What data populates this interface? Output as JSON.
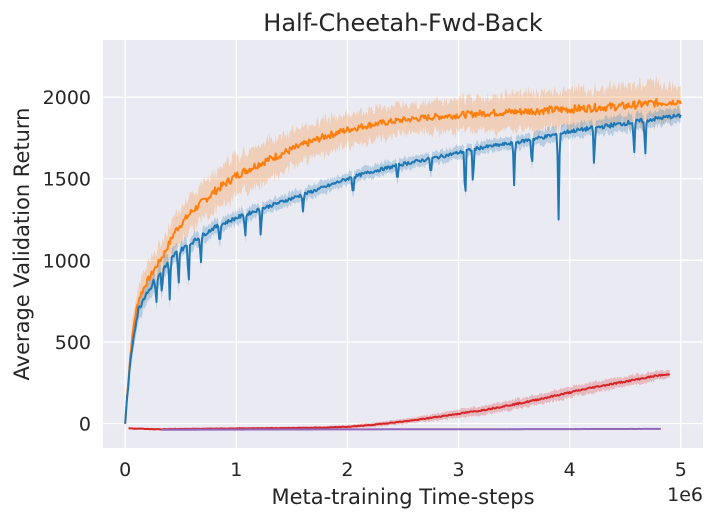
{
  "chart_data": {
    "type": "line",
    "title": "Half-Cheetah-Fwd-Back",
    "xlabel": "Meta-training Time-steps",
    "ylabel": "Average Validation Return",
    "x_offset_label": "1e6",
    "xlim": [
      -0.2,
      5.2
    ],
    "ylim": [
      -150,
      2350
    ],
    "xticks": [
      0,
      1,
      2,
      3,
      4,
      5
    ],
    "xtick_labels": [
      "0",
      "1",
      "2",
      "3",
      "4",
      "5"
    ],
    "yticks": [
      0,
      500,
      1000,
      1500,
      2000
    ],
    "ytick_labels": [
      "0",
      "500",
      "1000",
      "1500",
      "2000"
    ],
    "grid": true,
    "legend": "none",
    "series": [
      {
        "name": "orange",
        "color": "#ff7f0e",
        "x": [
          0.0,
          0.02,
          0.05,
          0.08,
          0.12,
          0.18,
          0.25,
          0.35,
          0.45,
          0.6,
          0.8,
          1.0,
          1.2,
          1.5,
          1.8,
          2.0,
          2.2,
          2.5,
          2.8,
          3.0,
          3.2,
          3.5,
          3.8,
          4.0,
          4.2,
          4.5,
          4.7,
          4.9,
          5.0
        ],
        "y": [
          0,
          200,
          450,
          620,
          760,
          850,
          930,
          1040,
          1180,
          1300,
          1420,
          1520,
          1590,
          1680,
          1760,
          1800,
          1830,
          1860,
          1880,
          1890,
          1900,
          1910,
          1920,
          1925,
          1935,
          1945,
          1960,
          1970,
          1975
        ],
        "band_width": [
          20,
          60,
          90,
          100,
          110,
          110,
          110,
          115,
          120,
          130,
          140,
          140,
          140,
          130,
          120,
          115,
          110,
          105,
          110,
          115,
          120,
          130,
          140,
          140,
          140,
          140,
          145,
          130,
          110
        ]
      },
      {
        "name": "blue",
        "color": "#1f77b4",
        "x": [
          0.0,
          0.02,
          0.05,
          0.08,
          0.12,
          0.18,
          0.25,
          0.35,
          0.45,
          0.6,
          0.8,
          1.0,
          1.2,
          1.5,
          1.8,
          2.0,
          2.2,
          2.5,
          2.8,
          3.0,
          3.2,
          3.5,
          3.8,
          4.0,
          4.2,
          4.5,
          4.7,
          4.9,
          5.0
        ],
        "y": [
          0,
          180,
          400,
          560,
          700,
          790,
          860,
          950,
          1040,
          1110,
          1200,
          1260,
          1310,
          1380,
          1450,
          1500,
          1540,
          1590,
          1630,
          1660,
          1690,
          1720,
          1760,
          1790,
          1810,
          1840,
          1860,
          1880,
          1885
        ],
        "band_width": [
          20,
          50,
          80,
          90,
          90,
          80,
          80,
          70,
          60,
          55,
          50,
          50,
          45,
          45,
          45,
          45,
          45,
          45,
          45,
          45,
          45,
          45,
          50,
          50,
          55,
          60,
          60,
          55,
          50
        ],
        "dips": [
          {
            "x": 0.22,
            "y": 820
          },
          {
            "x": 0.28,
            "y": 720
          },
          {
            "x": 0.33,
            "y": 780
          },
          {
            "x": 0.4,
            "y": 760
          },
          {
            "x": 0.48,
            "y": 830
          },
          {
            "x": 0.57,
            "y": 820
          },
          {
            "x": 0.68,
            "y": 960
          },
          {
            "x": 0.85,
            "y": 1080
          },
          {
            "x": 1.08,
            "y": 1130
          },
          {
            "x": 1.22,
            "y": 1130
          },
          {
            "x": 1.6,
            "y": 1300
          },
          {
            "x": 2.05,
            "y": 1380
          },
          {
            "x": 2.45,
            "y": 1470
          },
          {
            "x": 2.75,
            "y": 1510
          },
          {
            "x": 3.06,
            "y": 1320
          },
          {
            "x": 3.13,
            "y": 1440
          },
          {
            "x": 3.5,
            "y": 1460
          },
          {
            "x": 3.66,
            "y": 1550
          },
          {
            "x": 3.9,
            "y": 1250
          },
          {
            "x": 4.22,
            "y": 1560
          },
          {
            "x": 4.58,
            "y": 1630
          },
          {
            "x": 4.68,
            "y": 1620
          }
        ]
      },
      {
        "name": "red",
        "color": "#d62728",
        "x": [
          0.03,
          0.3,
          0.6,
          1.0,
          1.4,
          1.8,
          2.0,
          2.2,
          2.4,
          2.6,
          2.8,
          3.0,
          3.2,
          3.4,
          3.6,
          3.8,
          4.0,
          4.2,
          4.4,
          4.6,
          4.8,
          4.9
        ],
        "y": [
          -30,
          -35,
          -33,
          -30,
          -28,
          -25,
          -20,
          -10,
          5,
          20,
          40,
          60,
          80,
          105,
          130,
          160,
          190,
          220,
          245,
          270,
          295,
          300
        ],
        "band_width": [
          8,
          8,
          8,
          8,
          8,
          10,
          12,
          15,
          18,
          20,
          25,
          30,
          32,
          34,
          36,
          38,
          38,
          38,
          38,
          36,
          32,
          28
        ]
      },
      {
        "name": "purple",
        "color": "#9467bd",
        "x": [
          0.32,
          1.0,
          2.0,
          3.0,
          4.0,
          4.82
        ],
        "y": [
          -38,
          -37,
          -36,
          -35,
          -34,
          -33
        ],
        "band_width": [
          4,
          4,
          4,
          4,
          4,
          4
        ]
      }
    ]
  }
}
